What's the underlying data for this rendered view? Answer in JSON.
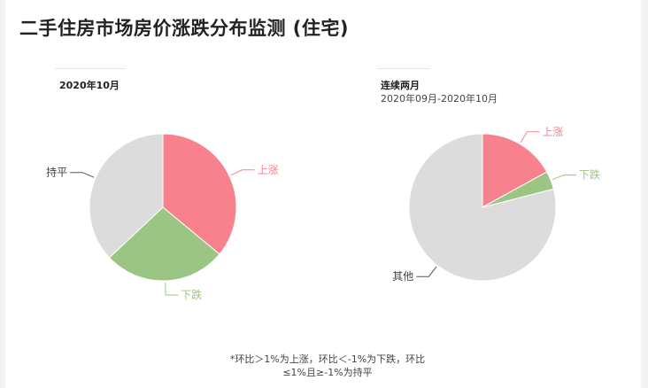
{
  "title": "二手住房市场房价涨跌分布监测 (住宅)",
  "colors": {
    "up": "#f7828e",
    "down": "#9bc583",
    "flat": "#dcdcdc",
    "label_text": "#444444"
  },
  "panels": [
    {
      "heading": "2020年10月",
      "subheading": ""
    },
    {
      "heading": "连续两月",
      "subheading": "2020年09月-2020年10月"
    }
  ],
  "chart_data": [
    {
      "type": "pie",
      "title": "2020年10月",
      "slices": [
        {
          "label": "上涨",
          "value": 36,
          "color": "#f7828e"
        },
        {
          "label": "下跌",
          "value": 27,
          "color": "#9bc583"
        },
        {
          "label": "持平",
          "value": 37,
          "color": "#dcdcdc"
        }
      ]
    },
    {
      "type": "pie",
      "title": "连续两月",
      "subtitle": "2020年09月-2020年10月",
      "slices": [
        {
          "label": "上涨",
          "value": 17,
          "color": "#f7828e"
        },
        {
          "label": "下跌",
          "value": 4,
          "color": "#9bc583"
        },
        {
          "label": "其他",
          "value": 79,
          "color": "#dcdcdc"
        }
      ]
    }
  ],
  "footnote": {
    "line1": "*环比＞1%为上涨，环比＜-1%为下跌，环比",
    "line2": "≤1%且≥-1%为持平"
  }
}
